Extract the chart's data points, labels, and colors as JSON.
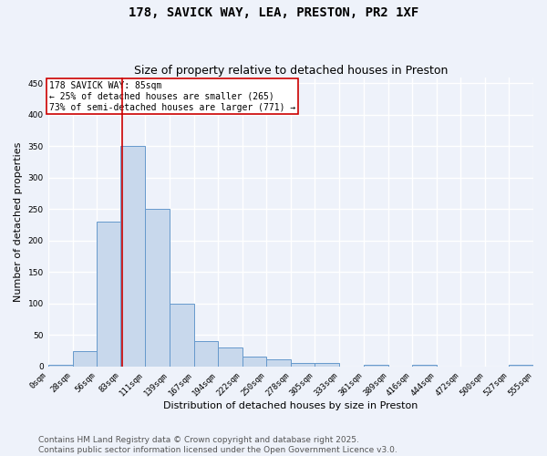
{
  "title": "178, SAVICK WAY, LEA, PRESTON, PR2 1XF",
  "subtitle": "Size of property relative to detached houses in Preston",
  "xlabel": "Distribution of detached houses by size in Preston",
  "ylabel": "Number of detached properties",
  "bar_color": "#c8d8ec",
  "bar_edge_color": "#6699cc",
  "annotation_line_color": "#cc0000",
  "annotation_box_edge": "#cc0000",
  "annotation_text": "178 SAVICK WAY: 85sqm\n← 25% of detached houses are smaller (265)\n73% of semi-detached houses are larger (771) →",
  "property_sqm": 85,
  "bin_edges": [
    0,
    28,
    56,
    83,
    111,
    139,
    167,
    194,
    222,
    250,
    278,
    305,
    333,
    361,
    389,
    416,
    444,
    472,
    500,
    527,
    555
  ],
  "bin_counts": [
    2,
    25,
    230,
    350,
    250,
    100,
    40,
    30,
    15,
    12,
    5,
    5,
    0,
    2,
    0,
    2,
    0,
    0,
    0,
    3
  ],
  "tick_labels": [
    "0sqm",
    "28sqm",
    "56sqm",
    "83sqm",
    "111sqm",
    "139sqm",
    "167sqm",
    "194sqm",
    "222sqm",
    "250sqm",
    "278sqm",
    "305sqm",
    "333sqm",
    "361sqm",
    "389sqm",
    "416sqm",
    "444sqm",
    "472sqm",
    "500sqm",
    "527sqm",
    "555sqm"
  ],
  "ylim": [
    0,
    460
  ],
  "yticks": [
    0,
    50,
    100,
    150,
    200,
    250,
    300,
    350,
    400,
    450
  ],
  "footer_text": "Contains HM Land Registry data © Crown copyright and database right 2025.\nContains public sector information licensed under the Open Government Licence v3.0.",
  "background_color": "#eef2fa",
  "plot_background": "#eef2fa",
  "grid_color": "#ffffff",
  "title_fontsize": 10,
  "subtitle_fontsize": 9,
  "axis_label_fontsize": 8,
  "tick_fontsize": 6.5,
  "footer_fontsize": 6.5
}
